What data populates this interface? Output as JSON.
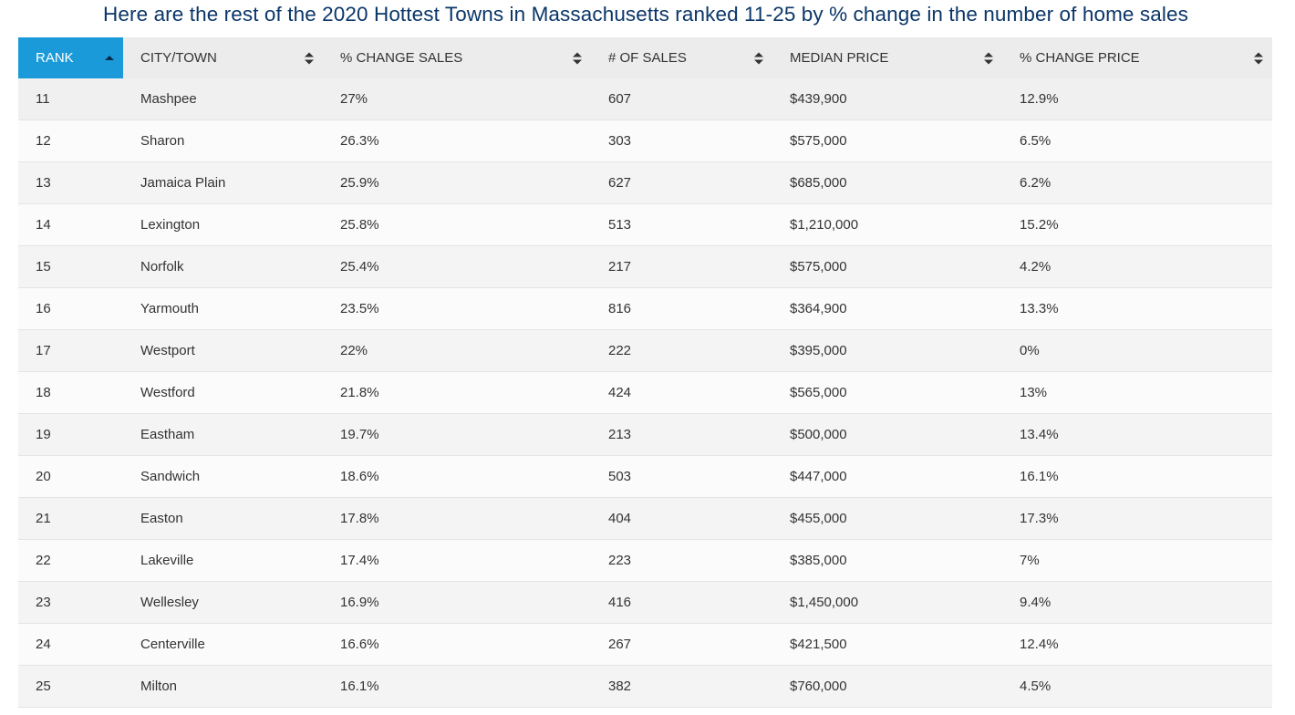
{
  "title": "Here are the rest of the 2020 Hottest Towns in Massachusetts ranked 11-25 by % change in the number of home sales",
  "colors": {
    "title": "#0b3668",
    "active_header": "#1a9ad8",
    "header_bg": "#ececec"
  },
  "table": {
    "sorted_column": "RANK",
    "sort_direction": "ascending",
    "columns": [
      {
        "label": "RANK",
        "icon": "sort-up-icon"
      },
      {
        "label": "CITY/TOWN",
        "icon": "sort-both-icon"
      },
      {
        "label": "% CHANGE SALES",
        "icon": "sort-both-icon"
      },
      {
        "label": "# OF SALES",
        "icon": "sort-both-icon"
      },
      {
        "label": "MEDIAN PRICE",
        "icon": "sort-both-icon"
      },
      {
        "label": "% CHANGE PRICE",
        "icon": "sort-both-icon"
      }
    ],
    "rows": [
      [
        "11",
        "Mashpee",
        "27%",
        "607",
        "$439,900",
        "12.9%"
      ],
      [
        "12",
        "Sharon",
        "26.3%",
        "303",
        "$575,000",
        "6.5%"
      ],
      [
        "13",
        "Jamaica Plain",
        "25.9%",
        "627",
        "$685,000",
        "6.2%"
      ],
      [
        "14",
        "Lexington",
        "25.8%",
        "513",
        "$1,210,000",
        "15.2%"
      ],
      [
        "15",
        "Norfolk",
        "25.4%",
        "217",
        "$575,000",
        "4.2%"
      ],
      [
        "16",
        "Yarmouth",
        "23.5%",
        "816",
        "$364,900",
        "13.3%"
      ],
      [
        "17",
        "Westport",
        "22%",
        "222",
        "$395,000",
        "0%"
      ],
      [
        "18",
        "Westford",
        "21.8%",
        "424",
        "$565,000",
        "13%"
      ],
      [
        "19",
        "Eastham",
        "19.7%",
        "213",
        "$500,000",
        "13.4%"
      ],
      [
        "20",
        "Sandwich",
        "18.6%",
        "503",
        "$447,000",
        "16.1%"
      ],
      [
        "21",
        "Easton",
        "17.8%",
        "404",
        "$455,000",
        "17.3%"
      ],
      [
        "22",
        "Lakeville",
        "17.4%",
        "223",
        "$385,000",
        "7%"
      ],
      [
        "23",
        "Wellesley",
        "16.9%",
        "416",
        "$1,450,000",
        "9.4%"
      ],
      [
        "24",
        "Centerville",
        "16.6%",
        "267",
        "$421,500",
        "12.4%"
      ],
      [
        "25",
        "Milton",
        "16.1%",
        "382",
        "$760,000",
        "4.5%"
      ]
    ]
  }
}
